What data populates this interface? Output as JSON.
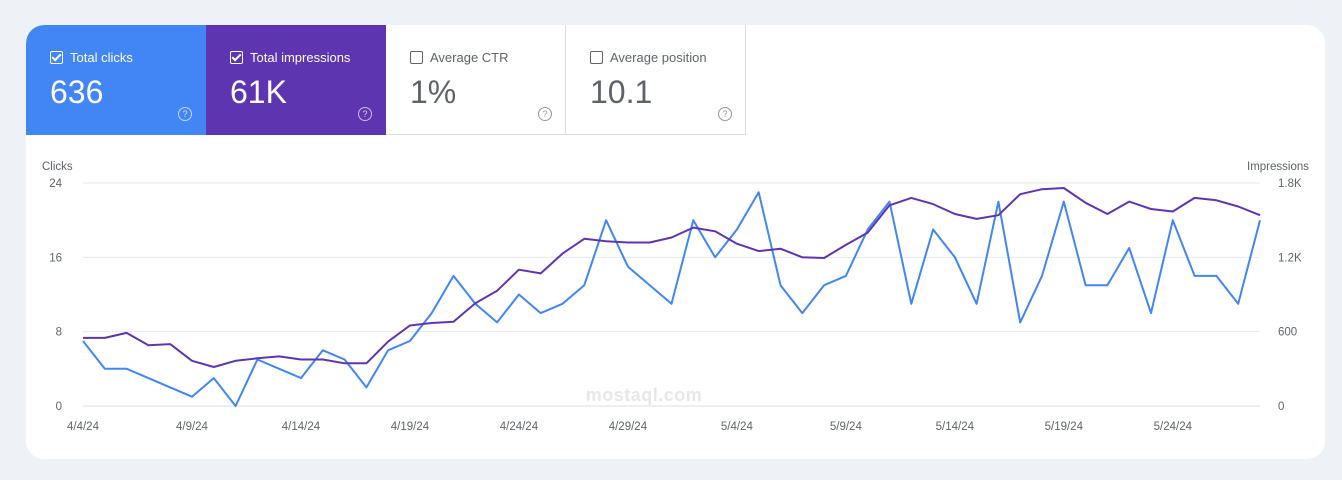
{
  "metrics": [
    {
      "label": "Total clicks",
      "value": "636",
      "checked": true
    },
    {
      "label": "Total impressions",
      "value": "61K",
      "checked": true
    },
    {
      "label": "Average CTR",
      "value": "1%",
      "checked": false
    },
    {
      "label": "Average position",
      "value": "10.1",
      "checked": false
    }
  ],
  "help_glyph": "?",
  "watermark": "mostaql.com",
  "colors": {
    "clicks": "#4285f4",
    "impressions": "#5e35b1",
    "grid": "#e8eaed",
    "axis_text": "#5f6368"
  },
  "chart_data": {
    "type": "line",
    "x": [
      "4/4/24",
      "4/5/24",
      "4/6/24",
      "4/7/24",
      "4/8/24",
      "4/9/24",
      "4/10/24",
      "4/11/24",
      "4/12/24",
      "4/13/24",
      "4/14/24",
      "4/15/24",
      "4/16/24",
      "4/17/24",
      "4/18/24",
      "4/19/24",
      "4/20/24",
      "4/21/24",
      "4/22/24",
      "4/23/24",
      "4/24/24",
      "4/25/24",
      "4/26/24",
      "4/27/24",
      "4/28/24",
      "4/29/24",
      "4/30/24",
      "5/1/24",
      "5/2/24",
      "5/3/24",
      "5/4/24",
      "5/5/24",
      "5/6/24",
      "5/7/24",
      "5/8/24",
      "5/9/24",
      "5/10/24",
      "5/11/24",
      "5/12/24",
      "5/13/24",
      "5/14/24",
      "5/15/24",
      "5/16/24",
      "5/17/24",
      "5/18/24",
      "5/19/24",
      "5/20/24",
      "5/21/24",
      "5/22/24",
      "5/23/24",
      "5/24/24",
      "5/25/24",
      "5/26/24",
      "5/27/24",
      "5/28/24"
    ],
    "x_ticks": [
      "4/4/24",
      "4/9/24",
      "4/14/24",
      "4/19/24",
      "4/24/24",
      "4/29/24",
      "5/4/24",
      "5/9/24",
      "5/14/24",
      "5/19/24",
      "5/24/24"
    ],
    "series": [
      {
        "name": "Clicks",
        "axis": "left",
        "values": [
          7,
          4,
          4,
          3,
          2,
          1,
          3,
          0,
          5,
          4,
          3,
          6,
          5,
          2,
          6,
          7,
          10,
          14,
          11,
          9,
          12,
          10,
          11,
          13,
          20,
          15,
          13,
          11,
          20,
          16,
          19,
          23,
          13,
          10,
          13,
          14,
          19,
          22,
          11,
          19,
          16,
          11,
          22,
          9,
          14,
          22,
          13,
          13,
          17,
          10,
          20,
          14,
          14,
          11,
          20
        ]
      },
      {
        "name": "Impressions",
        "axis": "right",
        "values": [
          550,
          550,
          590,
          490,
          500,
          365,
          315,
          365,
          385,
          400,
          375,
          375,
          345,
          345,
          520,
          650,
          670,
          680,
          830,
          930,
          1100,
          1070,
          1230,
          1350,
          1330,
          1320,
          1320,
          1360,
          1440,
          1410,
          1310,
          1250,
          1270,
          1200,
          1195,
          1300,
          1400,
          1620,
          1680,
          1630,
          1550,
          1510,
          1540,
          1710,
          1750,
          1760,
          1640,
          1550,
          1650,
          1590,
          1570,
          1680,
          1660,
          1610,
          1540
        ]
      }
    ],
    "ylabel_left": "Clicks",
    "ylabel_right": "Impressions",
    "ylim_left": [
      0,
      24
    ],
    "ylim_right": [
      0,
      1800
    ],
    "yticks_left": [
      "0",
      "8",
      "16",
      "24"
    ],
    "yticks_right": [
      "0",
      "600",
      "1.2K",
      "1.8K"
    ],
    "grid": true
  }
}
